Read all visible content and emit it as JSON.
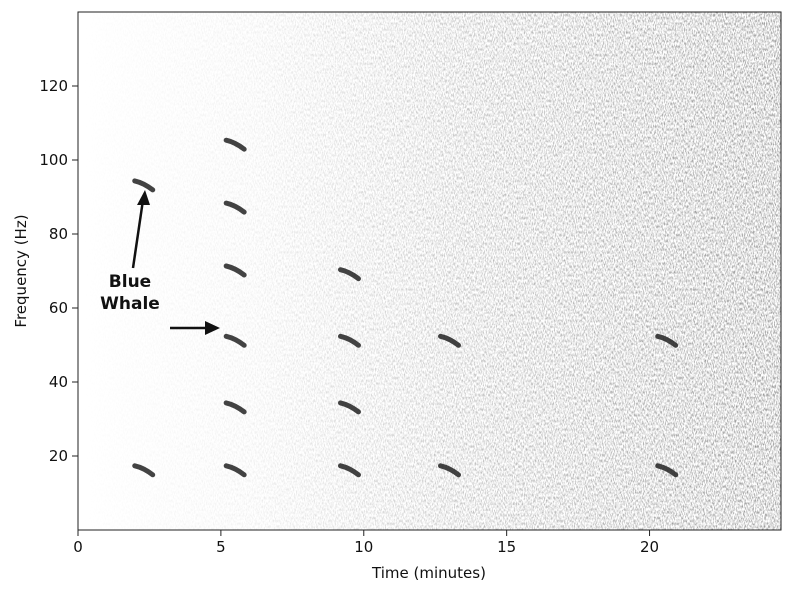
{
  "chart_data": {
    "type": "spectrogram",
    "xlabel": "Time (minutes)",
    "ylabel": "Frequency (Hz)",
    "xlim": [
      0,
      24.6
    ],
    "ylim": [
      0,
      140
    ],
    "xticks": [
      0,
      5,
      10,
      15,
      20
    ],
    "yticks": [
      20,
      40,
      60,
      80,
      100,
      120
    ],
    "calls": {
      "x": [
        2.3,
        2.3,
        5.5,
        5.5,
        5.5,
        5.5,
        5.5,
        5.5,
        9.5,
        9.5,
        9.5,
        9.5,
        13.0,
        13.0,
        20.6,
        20.6
      ],
      "y": [
        93,
        16,
        16,
        33,
        51,
        70,
        87,
        104,
        16,
        33,
        51,
        69,
        16,
        51,
        16,
        51
      ]
    },
    "annotation": [
      "Blue",
      "Whale"
    ],
    "color": "#222222"
  }
}
